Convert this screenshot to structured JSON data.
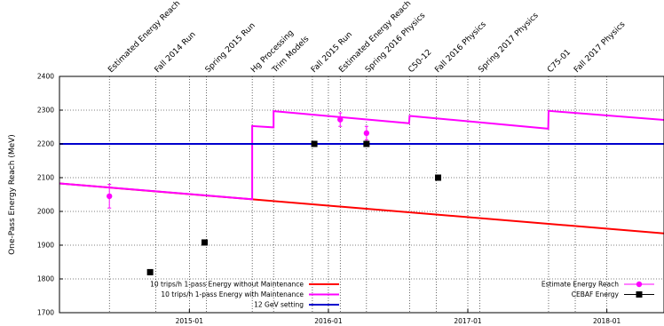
{
  "chart_data": {
    "type": "line",
    "title": "",
    "xlabel": "",
    "ylabel": "One-Pass Energy Reach (MeV)",
    "xlim": [
      "2014-01-25",
      "2018-05-31"
    ],
    "ylim": [
      1700,
      2400
    ],
    "y_ticks": [
      1700,
      1800,
      1900,
      2000,
      2100,
      2200,
      2300,
      2400
    ],
    "x_ticks": [
      {
        "date": "2015-01-01",
        "label": "2015-01"
      },
      {
        "date": "2016-01-01",
        "label": "2016-01"
      },
      {
        "date": "2017-01-01",
        "label": "2017-01"
      },
      {
        "date": "2018-01-01",
        "label": "2018-01"
      }
    ],
    "grid": true,
    "legend_left_position": "bottom-left",
    "legend_right_position": "bottom-right",
    "events": [
      {
        "date": "2014-06-05",
        "label": "Estimated Energy Reach"
      },
      {
        "date": "2014-10-05",
        "label": "Fall 2014 Run"
      },
      {
        "date": "2015-02-15",
        "label": "Spring 2015 Run"
      },
      {
        "date": "2015-06-15",
        "label": "Hg Processing"
      },
      {
        "date": "2015-08-10",
        "label": "Trim Models"
      },
      {
        "date": "2015-11-20",
        "label": "Fall 2015 Run"
      },
      {
        "date": "2016-02-01",
        "label": "Estimated Energy Reach"
      },
      {
        "date": "2016-04-10",
        "label": "Spring 2016 Physics"
      },
      {
        "date": "2016-08-01",
        "label": "C50-12"
      },
      {
        "date": "2016-10-10",
        "label": "Fall 2016 Physics"
      },
      {
        "date": "2017-02-01",
        "label": "Spring 2017 Physics"
      },
      {
        "date": "2017-08-01",
        "label": "C75-01"
      },
      {
        "date": "2017-10-10",
        "label": "Fall 2017 Physics"
      }
    ],
    "series": [
      {
        "name": "10 trips/h 1-pass Energy without Maintenance",
        "color": "#ff0000",
        "x": [
          "2014-01-25",
          "2018-05-31"
        ],
        "y": [
          2083,
          1935
        ]
      },
      {
        "name": "10 trips/h 1-pass Energy with Maintenance",
        "color": "#ff00ff",
        "x": [
          "2014-01-25",
          "2015-06-15",
          "2015-06-15",
          "2015-08-10",
          "2015-08-10",
          "2016-07-31",
          "2016-08-01",
          "2017-07-31",
          "2017-08-01",
          "2018-05-31"
        ],
        "y": [
          2083,
          2036,
          2253,
          2249,
          2297,
          2261,
          2283,
          2245,
          2298,
          2271
        ]
      },
      {
        "name": "12 GeV setting",
        "color": "#0000cd",
        "x": [
          "2014-01-25",
          "2018-05-31"
        ],
        "y": [
          2200,
          2200
        ]
      },
      {
        "name": "Estimate Energy Reach",
        "color": "#ff00ff",
        "marker": "circle",
        "x": [
          "2014-06-05",
          "2016-02-01",
          "2016-04-10"
        ],
        "y": [
          2045,
          2272,
          2232
        ],
        "err": [
          35,
          20,
          20
        ]
      },
      {
        "name": "CEBAF Energy",
        "color": "#000000",
        "marker": "square",
        "x": [
          "2014-09-20",
          "2015-02-10",
          "2015-11-25",
          "2016-04-10",
          "2016-10-15"
        ],
        "y": [
          1820,
          1908,
          2200,
          2200,
          2100
        ]
      }
    ]
  }
}
